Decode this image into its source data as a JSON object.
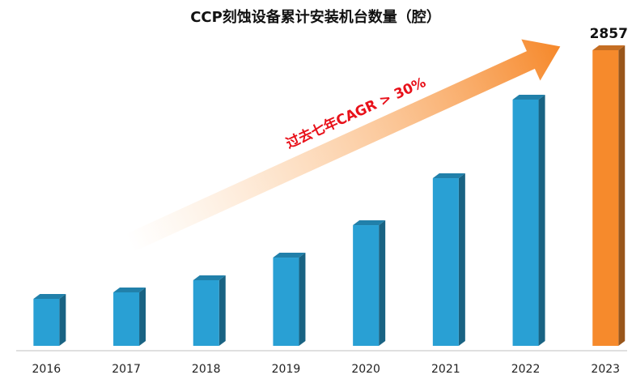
{
  "chart_data": {
    "type": "bar3d",
    "title": "CCP刻蚀设备累计安装机台数量（腔）",
    "annotation": "过去七年CAGR > 30%",
    "categories": [
      "2016",
      "2017",
      "2018",
      "2019",
      "2020",
      "2021",
      "2022",
      "2023"
    ],
    "values": [
      454,
      517,
      634,
      853,
      1166,
      1620,
      2380,
      2857
    ],
    "value_labels": [
      null,
      null,
      null,
      null,
      null,
      null,
      null,
      "2857"
    ],
    "colors": [
      "#29a0d4",
      "#29a0d4",
      "#29a0d4",
      "#29a0d4",
      "#29a0d4",
      "#29a0d4",
      "#29a0d4",
      "#f68a2c"
    ]
  }
}
